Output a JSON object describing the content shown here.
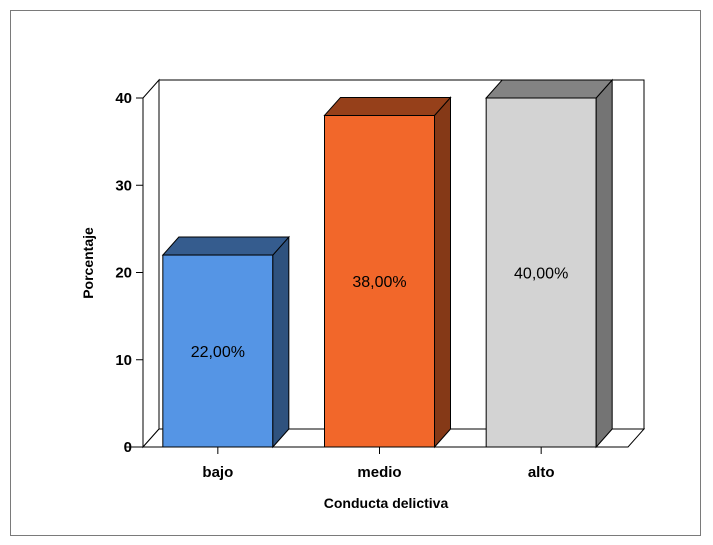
{
  "chart_data": {
    "type": "bar",
    "categories": [
      "bajo",
      "medio",
      "alto"
    ],
    "values": [
      22,
      38,
      40
    ],
    "data_labels": [
      "22,00%",
      "38,00%",
      "40,00%"
    ],
    "colors": [
      "#5595e5",
      "#f2672a",
      "#d3d3d3"
    ],
    "xlabel": "Conducta delictiva",
    "ylabel": "Porcentaje",
    "ylim": [
      0,
      40
    ],
    "yticks": [
      "0",
      "10",
      "20",
      "30",
      "40"
    ],
    "grid": false,
    "style": "3d"
  }
}
